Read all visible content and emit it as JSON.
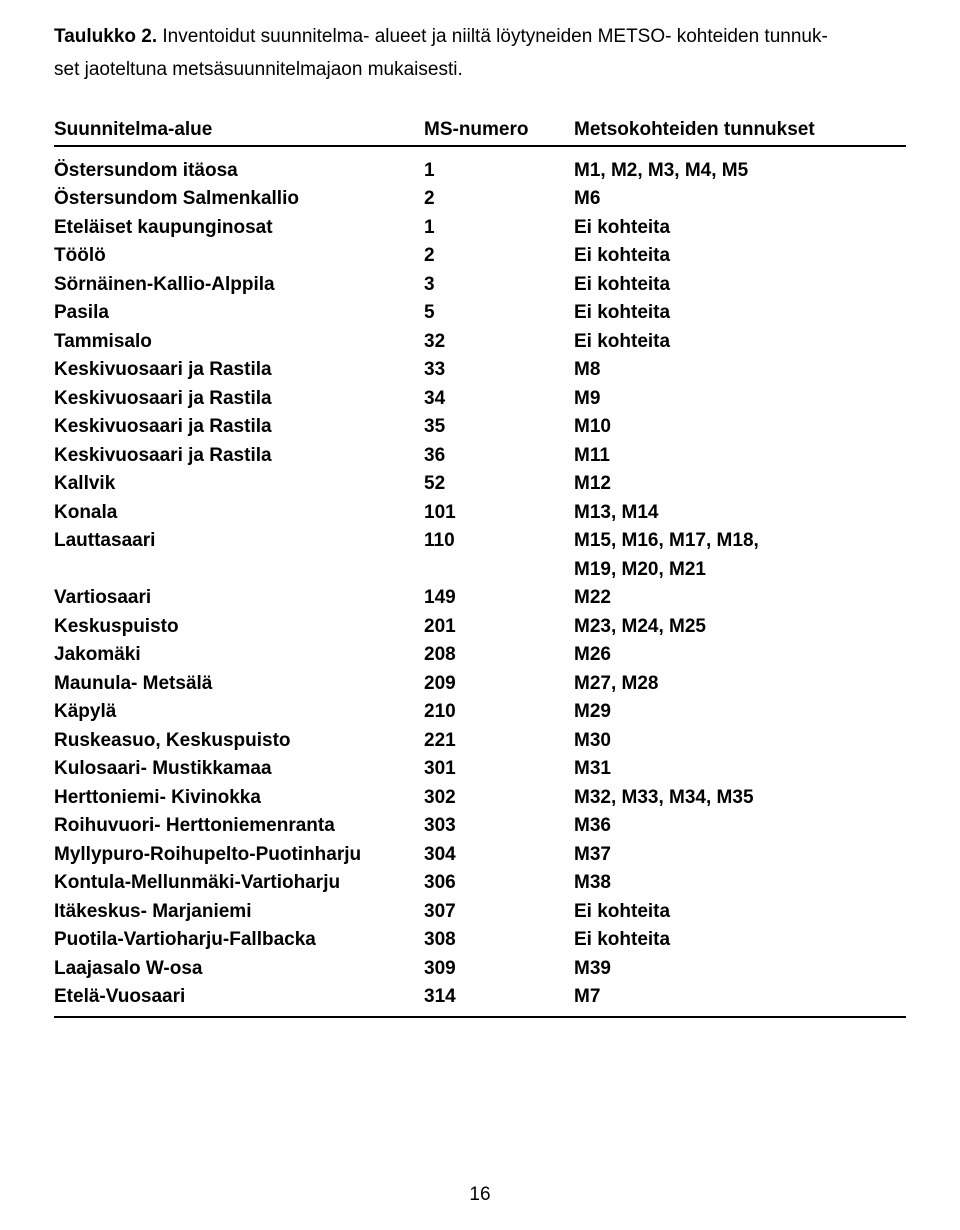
{
  "caption": {
    "lead": "Taulukko 2.",
    "text_line1": " Inventoidut suunnitelma- alueet ja niiltä löytyneiden METSO- kohteiden tunnuk-",
    "text_line2": "set jaoteltuna metsäsuunnitelmajaon mukaisesti."
  },
  "table": {
    "headers": {
      "area": "Suunnitelma-alue",
      "ms": "MS-numero",
      "met": "Metsokohteiden tunnukset"
    },
    "rows": [
      {
        "area": "Östersundom itäosa",
        "ms": "1",
        "met": "M1, M2, M3, M4, M5"
      },
      {
        "area": "Östersundom Salmenkallio",
        "ms": "2",
        "met": "M6"
      },
      {
        "area": "Eteläiset kaupunginosat",
        "ms": "1",
        "met": "Ei kohteita"
      },
      {
        "area": "Töölö",
        "ms": "2",
        "met": "Ei kohteita"
      },
      {
        "area": "Sörnäinen-Kallio-Alppila",
        "ms": "3",
        "met": "Ei kohteita"
      },
      {
        "area": "Pasila",
        "ms": "5",
        "met": "Ei kohteita"
      },
      {
        "area": "Tammisalo",
        "ms": "32",
        "met": "Ei kohteita"
      },
      {
        "area": "Keskivuosaari ja Rastila",
        "ms": "33",
        "met": "M8"
      },
      {
        "area": "Keskivuosaari ja Rastila",
        "ms": "34",
        "met": "M9"
      },
      {
        "area": "Keskivuosaari ja Rastila",
        "ms": "35",
        "met": "M10"
      },
      {
        "area": "Keskivuosaari ja Rastila",
        "ms": "36",
        "met": "M11"
      },
      {
        "area": "Kallvik",
        "ms": "52",
        "met": "M12"
      },
      {
        "area": "Konala",
        "ms": "101",
        "met": "M13, M14"
      },
      {
        "area": "Lauttasaari",
        "ms": "110",
        "met": "M15, M16, M17, M18,",
        "met2": "M19, M20, M21"
      },
      {
        "area": "Vartiosaari",
        "ms": "149",
        "met": "M22"
      },
      {
        "area": "Keskuspuisto",
        "ms": "201",
        "met": "M23, M24, M25"
      },
      {
        "area": "Jakomäki",
        "ms": "208",
        "met": "M26"
      },
      {
        "area": "Maunula- Metsälä",
        "ms": "209",
        "met": "M27, M28"
      },
      {
        "area": "Käpylä",
        "ms": "210",
        "met": "M29"
      },
      {
        "area": "Ruskeasuo, Keskuspuisto",
        "ms": "221",
        "met": "M30"
      },
      {
        "area": "Kulosaari- Mustikkamaa",
        "ms": "301",
        "met": "M31"
      },
      {
        "area": "Herttoniemi- Kivinokka",
        "ms": "302",
        "met": "M32, M33, M34, M35"
      },
      {
        "area": "Roihuvuori- Herttoniemenranta",
        "ms": "303",
        "met": "M36"
      },
      {
        "area": "Myllypuro-Roihupelto-Puotinharju",
        "ms": "304",
        "met": "M37"
      },
      {
        "area": "Kontula-Mellunmäki-Vartioharju",
        "ms": "306",
        "met": "M38"
      },
      {
        "area": "Itäkeskus- Marjaniemi",
        "ms": "307",
        "met": "Ei kohteita"
      },
      {
        "area": "Puotila-Vartioharju-Fallbacka",
        "ms": "308",
        "met": "Ei kohteita"
      },
      {
        "area": "Laajasalo W-osa",
        "ms": "309",
        "met": "M39"
      },
      {
        "area": "Etelä-Vuosaari",
        "ms": "314",
        "met": "M7"
      }
    ]
  },
  "page_number": "16"
}
